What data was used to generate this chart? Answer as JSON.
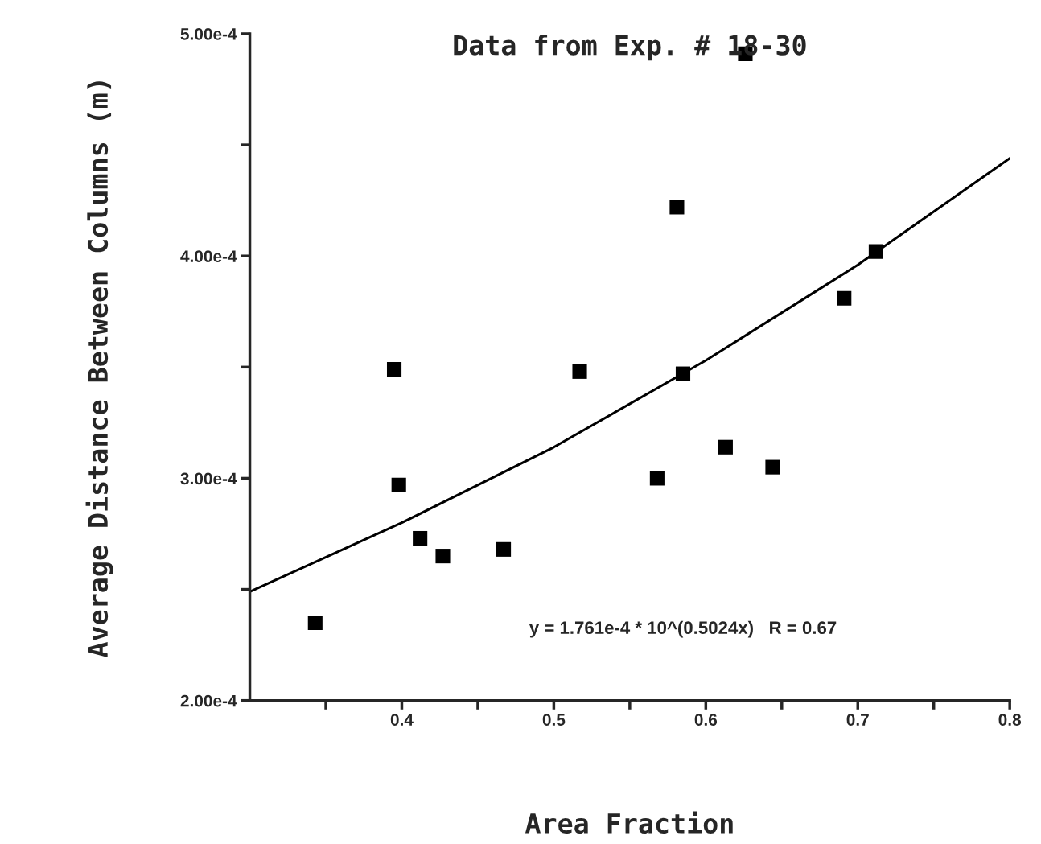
{
  "chart_data": {
    "type": "scatter",
    "title": "Data from Exp. # 18-30",
    "xlabel": "Area Fraction",
    "ylabel": "Average Distance Between Columns (m)",
    "series": [
      {
        "color": "#000000",
        "marker": "square",
        "x": [
          0.343,
          0.395,
          0.398,
          0.412,
          0.427,
          0.467,
          0.517,
          0.568,
          0.581,
          0.585,
          0.613,
          0.626,
          0.644,
          0.691,
          0.712
        ],
        "values": [
          0.000235,
          0.000349,
          0.000297,
          0.000273,
          0.000265,
          0.000268,
          0.000348,
          0.0003,
          0.000422,
          0.000347,
          0.000314,
          0.000491,
          0.000305,
          0.000381,
          0.000402
        ]
      },
      {
        "type": "line",
        "color": "#000000",
        "marker": "none",
        "line_style": "solid",
        "x": [
          0.3,
          0.4,
          0.5,
          0.6,
          0.7,
          0.8
        ],
        "values": [
          0.000249,
          0.00028,
          0.000314,
          0.000353,
          0.000396,
          0.000444
        ]
      }
    ],
    "xlim": [
      0.3,
      0.8
    ],
    "ylim": [
      0.0002,
      0.0005
    ],
    "xticks": [
      {
        "value": 0.35,
        "label": null
      },
      0.4,
      {
        "value": 0.45,
        "label": null
      },
      0.5,
      {
        "value": 0.55,
        "label": null
      },
      0.6,
      {
        "value": 0.65,
        "label": null
      },
      0.7,
      {
        "value": 0.75,
        "label": null
      },
      0.8
    ],
    "yticks": [
      {
        "value": 0.0002,
        "label": "2.00e-4"
      },
      {
        "value": 0.00025,
        "label": null
      },
      {
        "value": 0.0003,
        "label": "3.00e-4"
      },
      {
        "value": 0.00035,
        "label": null
      },
      {
        "value": 0.0004,
        "label": "4.00e-4"
      },
      {
        "value": 0.00045,
        "label": null
      },
      {
        "value": 0.0005,
        "label": "5.00e-4"
      }
    ],
    "annotations": [
      "y = 1.761e-4 * 10^(0.5024x)   R = 0.67"
    ],
    "grid": false,
    "legend": false
  }
}
